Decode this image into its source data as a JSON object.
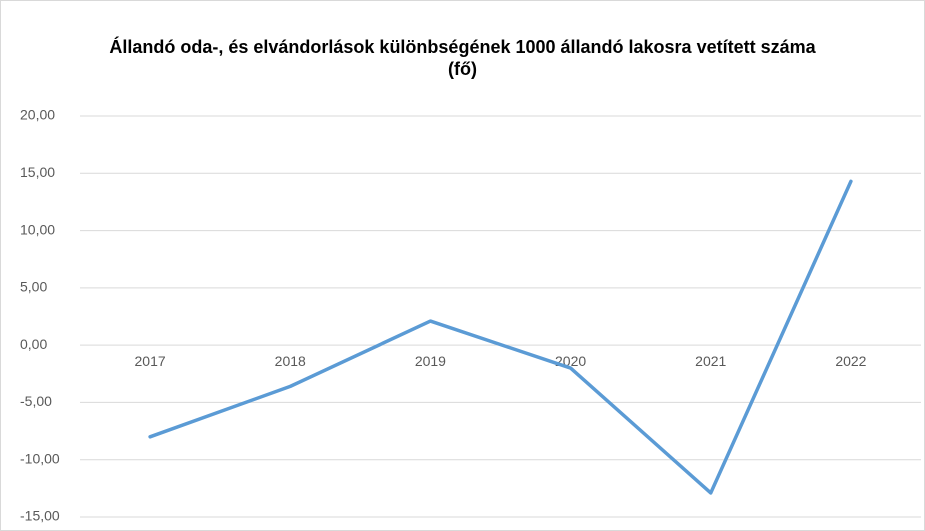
{
  "chart_data": {
    "type": "line",
    "title": "Állandó oda-, és elvándorlások különbségének 1000 állandó lakosra vetített száma (fő)",
    "categories": [
      "2017",
      "2018",
      "2019",
      "2020",
      "2021",
      "2022"
    ],
    "series": [
      {
        "color": "#5b9bd5",
        "values": [
          -8.0,
          -3.6,
          2.1,
          -2.0,
          -12.9,
          14.3
        ]
      }
    ],
    "ylim": [
      -15,
      20
    ],
    "yticks": [
      {
        "value": -15,
        "label": "-15,00"
      },
      {
        "value": -10,
        "label": "-10,00"
      },
      {
        "value": -5,
        "label": "-5,00"
      },
      {
        "value": 0,
        "label": "0,00"
      },
      {
        "value": 5,
        "label": "5,00"
      },
      {
        "value": 10,
        "label": "10,00"
      },
      {
        "value": 15,
        "label": "15,00"
      },
      {
        "value": 20,
        "label": "20,00"
      }
    ],
    "grid": true
  }
}
